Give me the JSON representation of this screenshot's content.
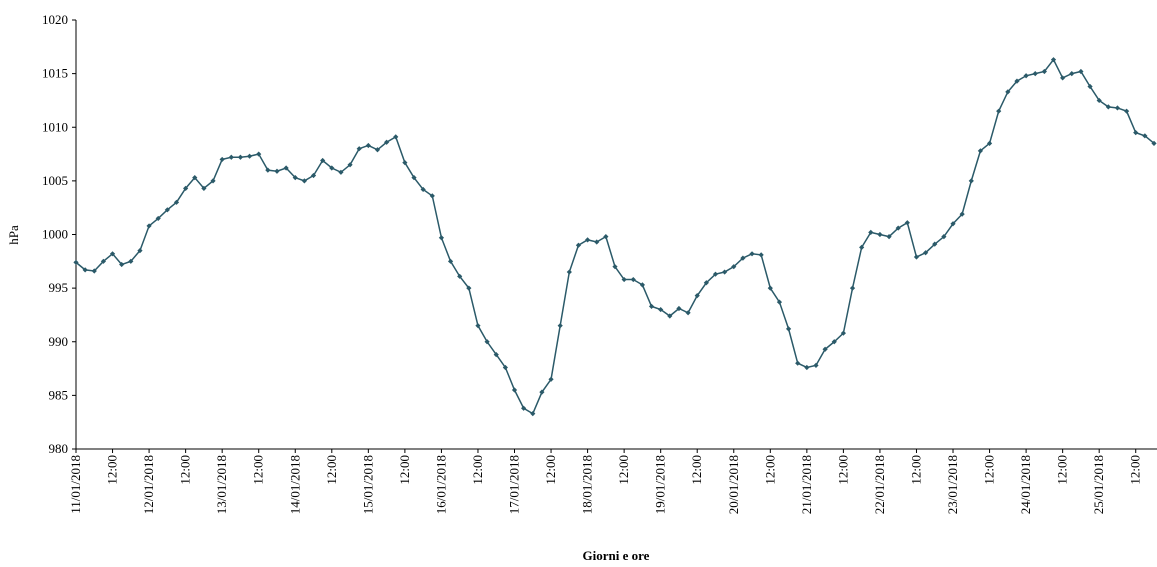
{
  "chart_data": {
    "type": "line",
    "y_label": "hPa",
    "x_label": "Giorni e ore",
    "categories": [
      "11/01/2018",
      null,
      null,
      null,
      "12:00",
      null,
      null,
      null,
      "12/01/2018",
      null,
      null,
      null,
      "12:00",
      null,
      null,
      null,
      "13/01/2018",
      null,
      null,
      null,
      "12:00",
      null,
      null,
      null,
      "14/01/2018",
      null,
      null,
      null,
      "12:00",
      null,
      null,
      null,
      "15/01/2018",
      null,
      null,
      null,
      "12:00",
      null,
      null,
      null,
      "16/01/2018",
      null,
      null,
      null,
      "12:00",
      null,
      null,
      null,
      "17/01/2018",
      null,
      null,
      null,
      "12:00",
      null,
      null,
      null,
      "18/01/2018",
      null,
      null,
      null,
      "12:00",
      null,
      null,
      null,
      "19/01/2018",
      null,
      null,
      null,
      "12:00",
      null,
      null,
      null,
      "20/01/2018",
      null,
      null,
      null,
      "12:00",
      null,
      null,
      null,
      "21/01/2018",
      null,
      null,
      null,
      "12:00",
      null,
      null,
      null,
      "22/01/2018",
      null,
      null,
      null,
      "12:00",
      null,
      null,
      null,
      "23/01/2018",
      null,
      null,
      null,
      "12:00",
      null,
      null,
      null,
      "24/01/2018",
      null,
      null,
      null,
      "12:00",
      null,
      null,
      null,
      "25/01/2018",
      null,
      null,
      null,
      "12:00",
      null,
      null
    ],
    "values": [
      997.4,
      996.7,
      996.6,
      997.5,
      998.2,
      997.2,
      997.5,
      998.5,
      1000.8,
      1001.5,
      1002.3,
      1003.0,
      1004.3,
      1005.3,
      1004.3,
      1005.0,
      1007.0,
      1007.2,
      1007.2,
      1007.3,
      1007.5,
      1006.0,
      1005.9,
      1006.2,
      1005.3,
      1005.0,
      1005.5,
      1006.9,
      1006.2,
      1005.8,
      1006.5,
      1008.0,
      1008.3,
      1007.9,
      1008.6,
      1009.1,
      1006.7,
      1005.3,
      1004.2,
      1003.6,
      999.7,
      997.5,
      996.1,
      995.0,
      991.5,
      990.0,
      988.8,
      987.6,
      985.5,
      983.8,
      983.3,
      985.3,
      986.5,
      991.5,
      996.5,
      999.0,
      999.5,
      999.3,
      999.8,
      997.0,
      995.8,
      995.8,
      995.3,
      993.3,
      993.0,
      992.4,
      993.1,
      992.7,
      994.3,
      995.5,
      996.3,
      996.5,
      997.0,
      997.8,
      998.2,
      998.1,
      995.0,
      993.7,
      991.2,
      988.0,
      987.6,
      987.8,
      989.3,
      990.0,
      990.8,
      995.0,
      998.8,
      1000.2,
      1000.0,
      999.8,
      1000.6,
      1001.1,
      997.9,
      998.3,
      999.1,
      999.8,
      1001.0,
      1001.9,
      1005.0,
      1007.8,
      1008.5,
      1011.5,
      1013.3,
      1014.3,
      1014.8,
      1015.0,
      1015.2,
      1016.3,
      1014.6,
      1015.0,
      1015.2,
      1013.8,
      1012.5,
      1011.9,
      1011.8,
      1011.5,
      1009.5,
      1009.2,
      1008.5
    ],
    "color": "#2b5a69",
    "ylim": [
      980,
      1020
    ],
    "yticks": [
      980,
      985,
      990,
      995,
      1000,
      1005,
      1010,
      1015,
      1020
    ],
    "grid": false
  }
}
